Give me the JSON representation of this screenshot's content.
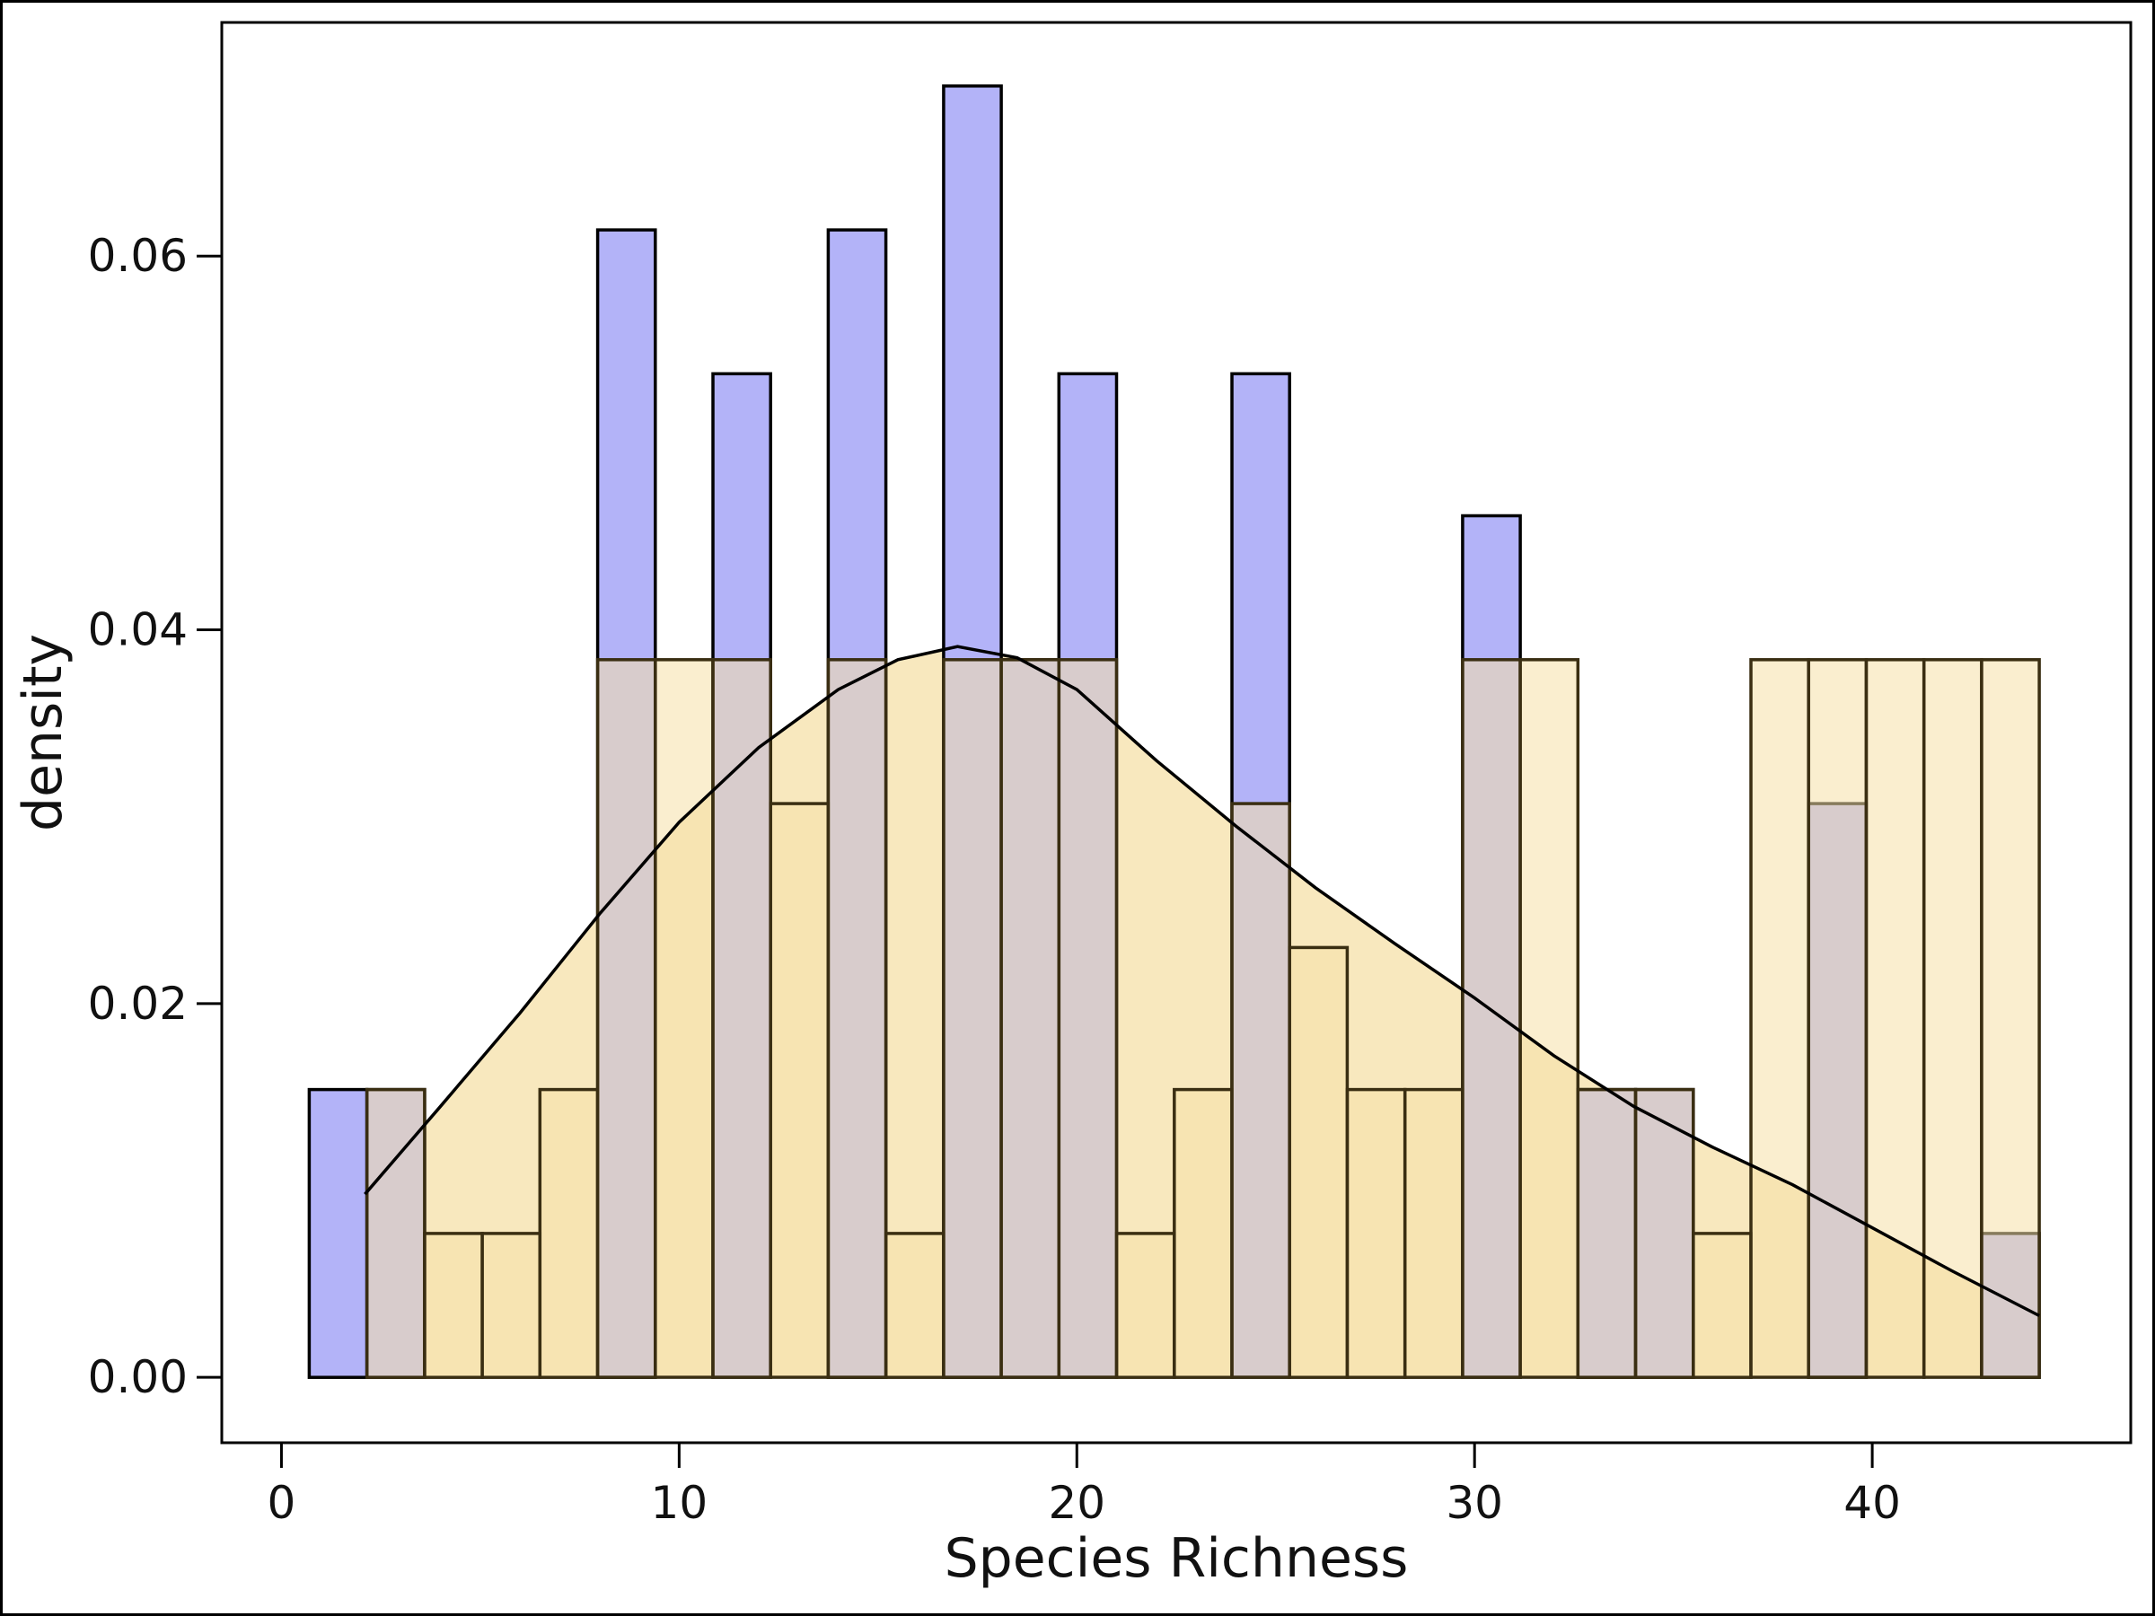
{
  "chart_data": {
    "type": "bar",
    "title": "",
    "xlabel": "Species Richness",
    "ylabel": "density",
    "xlim": [
      -1.5,
      46.5
    ],
    "ylim": [
      -0.0035,
      0.0725
    ],
    "xticks": [
      "0",
      "10",
      "20",
      "30",
      "40"
    ],
    "yticks": [
      "0.00",
      "0.02",
      "0.04",
      "0.06"
    ],
    "grid": false,
    "legend": "none",
    "colors": {
      "blue": "#b3b3f8",
      "yellow": "#f5e0a8",
      "edge": "#000000"
    },
    "series": [
      {
        "color": "blue",
        "bins": [
          [
            0.7,
            2.15,
            0.0154
          ],
          [
            2.15,
            3.6,
            0.0154
          ],
          [
            3.6,
            5.05,
            0
          ],
          [
            5.05,
            6.5,
            0
          ],
          [
            6.5,
            7.95,
            0
          ],
          [
            7.95,
            9.4,
            0.0614
          ],
          [
            9.4,
            10.85,
            0
          ],
          [
            10.85,
            12.3,
            0.0537
          ],
          [
            12.3,
            13.75,
            0
          ],
          [
            13.75,
            15.2,
            0.0614
          ],
          [
            15.2,
            16.65,
            0
          ],
          [
            16.65,
            18.1,
            0.0691
          ],
          [
            18.1,
            19.55,
            0.0384
          ],
          [
            19.55,
            21.0,
            0.0537
          ],
          [
            21.0,
            22.45,
            0
          ],
          [
            22.45,
            23.9,
            0
          ],
          [
            23.9,
            25.35,
            0.0537
          ],
          [
            25.35,
            26.8,
            0
          ],
          [
            26.8,
            28.25,
            0
          ],
          [
            28.25,
            29.7,
            0
          ],
          [
            29.7,
            31.15,
            0.0461
          ],
          [
            31.15,
            32.6,
            0
          ],
          [
            32.6,
            34.05,
            0.0154
          ],
          [
            34.05,
            35.5,
            0.0154
          ],
          [
            35.5,
            36.95,
            0
          ],
          [
            36.95,
            38.4,
            0
          ],
          [
            38.4,
            39.85,
            0.0307
          ],
          [
            39.85,
            41.3,
            0
          ],
          [
            41.3,
            42.75,
            0
          ],
          [
            42.75,
            44.2,
            0.0077
          ]
        ]
      },
      {
        "color": "yellow",
        "bins": [
          [
            2.15,
            3.6,
            0.0154
          ],
          [
            3.6,
            5.05,
            0.0077
          ],
          [
            5.05,
            6.5,
            0.0077
          ],
          [
            6.5,
            7.95,
            0.0154
          ],
          [
            7.95,
            9.4,
            0.0384
          ],
          [
            9.4,
            10.85,
            0.0384
          ],
          [
            10.85,
            12.3,
            0.0384
          ],
          [
            12.3,
            13.75,
            0.0307
          ],
          [
            13.75,
            15.2,
            0.0384
          ],
          [
            15.2,
            16.65,
            0.0077
          ],
          [
            16.65,
            18.1,
            0.0384
          ],
          [
            18.1,
            19.55,
            0.0384
          ],
          [
            19.55,
            21.0,
            0.0384
          ],
          [
            21.0,
            22.45,
            0.0077
          ],
          [
            22.45,
            23.9,
            0.0154
          ],
          [
            23.9,
            25.35,
            0.0307
          ],
          [
            25.35,
            26.8,
            0.023
          ],
          [
            26.8,
            28.25,
            0.0154
          ],
          [
            28.25,
            29.7,
            0.0154
          ],
          [
            29.7,
            31.15,
            0.0384
          ],
          [
            31.15,
            32.6,
            0.0384
          ],
          [
            32.6,
            34.05,
            0.0154
          ],
          [
            34.05,
            35.5,
            0.0154
          ],
          [
            35.5,
            36.95,
            0.0077
          ],
          [
            36.95,
            38.4,
            0.0384
          ],
          [
            38.4,
            39.85,
            0.0384
          ],
          [
            39.85,
            41.3,
            0.0384
          ],
          [
            41.3,
            42.75,
            0.0384
          ],
          [
            42.75,
            44.2,
            0.0384
          ]
        ]
      }
    ],
    "density_curve": {
      "x": [
        2.1,
        4,
        6,
        8,
        10,
        12,
        14,
        15.5,
        17,
        18.5,
        20,
        22,
        24,
        26,
        28,
        30,
        32,
        34,
        36,
        38,
        40,
        42,
        44.2
      ],
      "y": [
        0.0098,
        0.0145,
        0.0195,
        0.0248,
        0.0297,
        0.0337,
        0.0368,
        0.0384,
        0.0391,
        0.0385,
        0.0368,
        0.033,
        0.0295,
        0.0262,
        0.0232,
        0.0203,
        0.0172,
        0.0145,
        0.0123,
        0.0103,
        0.008,
        0.0057,
        0.0033
      ]
    }
  }
}
